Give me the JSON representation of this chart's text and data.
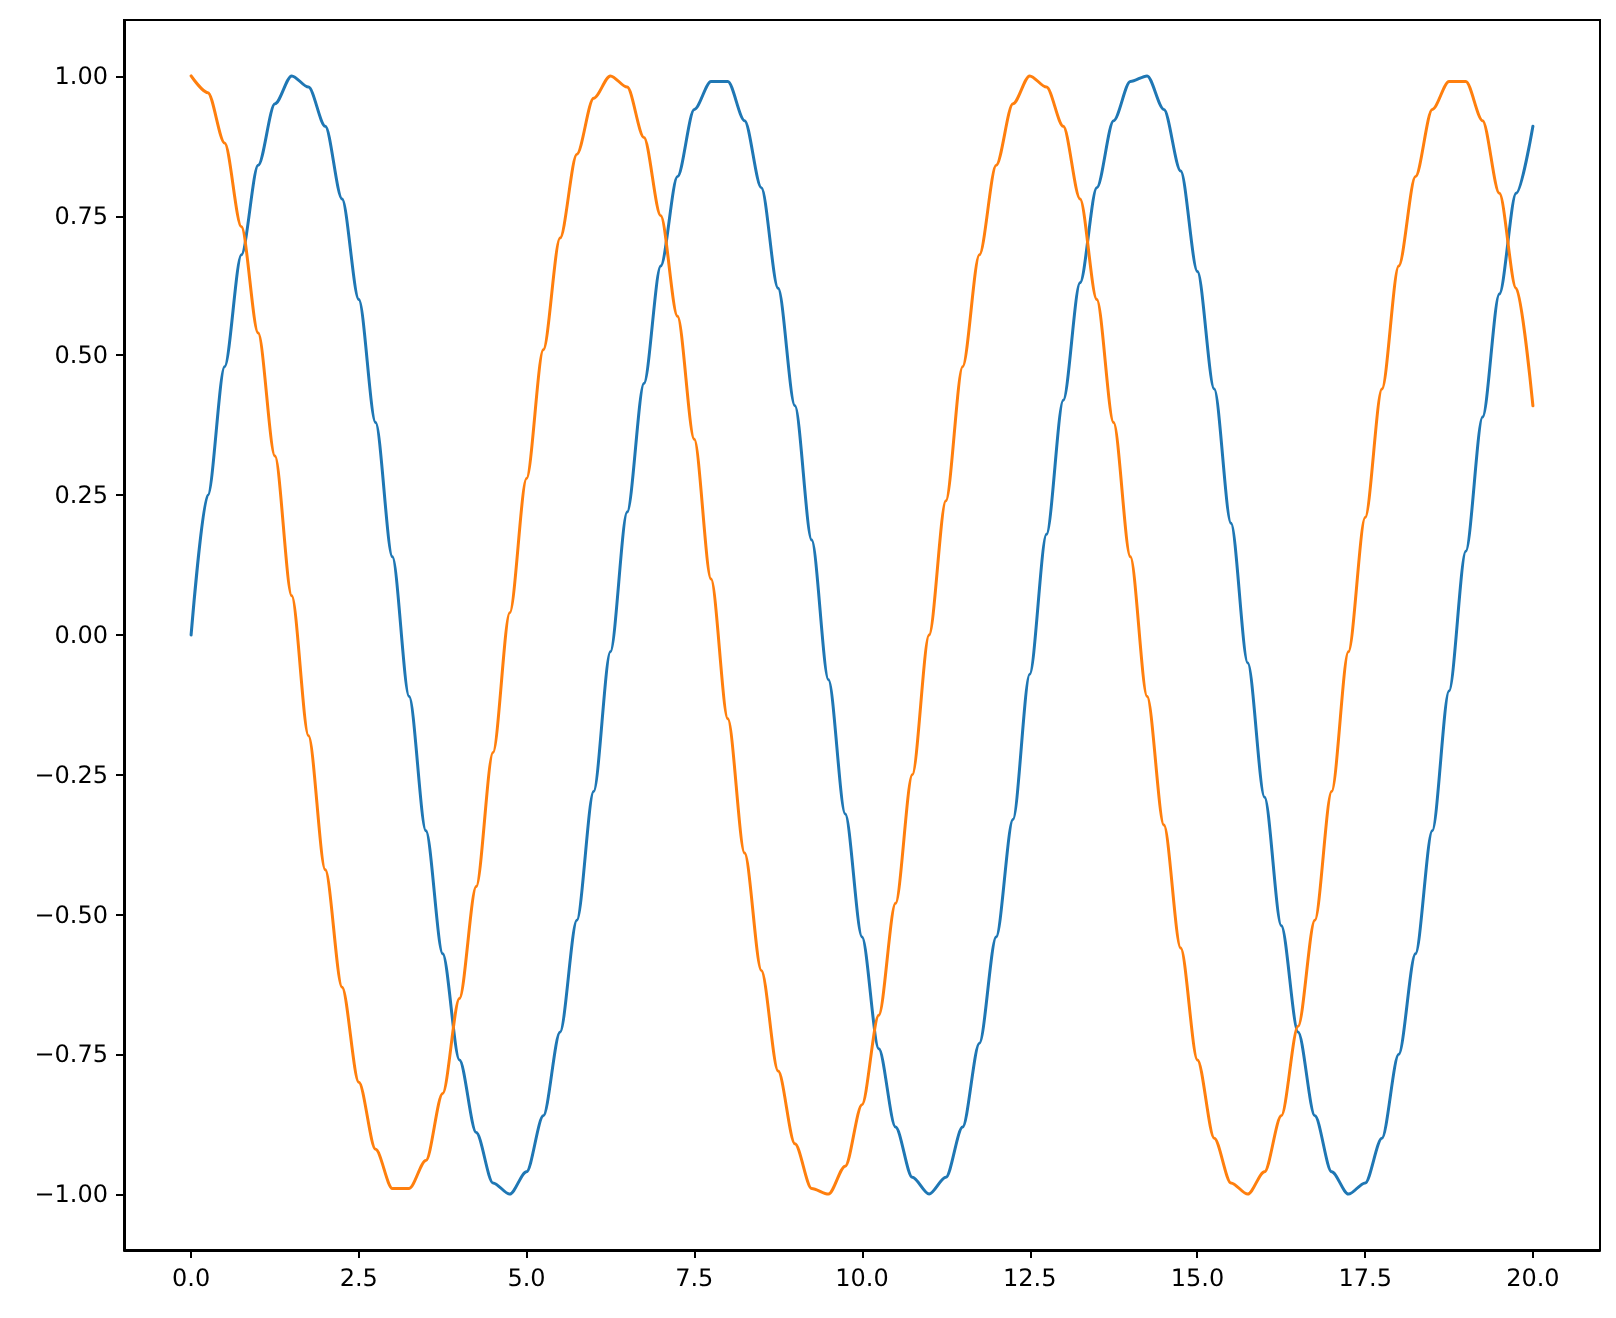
{
  "chart_data": {
    "type": "line",
    "x": [
      0,
      0.25,
      0.5,
      0.75,
      1,
      1.25,
      1.5,
      1.75,
      2,
      2.25,
      2.5,
      2.75,
      3,
      3.25,
      3.5,
      3.75,
      4,
      4.25,
      4.5,
      4.75,
      5,
      5.25,
      5.5,
      5.75,
      6,
      6.25,
      6.5,
      6.75,
      7,
      7.25,
      7.5,
      7.75,
      8,
      8.25,
      8.5,
      8.75,
      9,
      9.25,
      9.5,
      9.75,
      10,
      10.25,
      10.5,
      10.75,
      11,
      11.25,
      11.5,
      11.75,
      12,
      12.25,
      12.5,
      12.75,
      13,
      13.25,
      13.5,
      13.75,
      14,
      14.25,
      14.5,
      14.75,
      15,
      15.25,
      15.5,
      15.75,
      16,
      16.25,
      16.5,
      16.75,
      17,
      17.25,
      17.5,
      17.75,
      18,
      18.25,
      18.5,
      18.75,
      19,
      19.25,
      19.5,
      19.75,
      20
    ],
    "series": [
      {
        "color": "#1f77b4",
        "values": [
          0.0,
          0.25,
          0.48,
          0.68,
          0.84,
          0.95,
          1.0,
          0.98,
          0.91,
          0.78,
          0.6,
          0.38,
          0.14,
          -0.11,
          -0.35,
          -0.57,
          -0.76,
          -0.89,
          -0.98,
          -1.0,
          -0.96,
          -0.86,
          -0.71,
          -0.51,
          -0.28,
          -0.03,
          0.22,
          0.45,
          0.66,
          0.82,
          0.94,
          0.99,
          0.99,
          0.92,
          0.8,
          0.62,
          0.41,
          0.17,
          -0.08,
          -0.32,
          -0.54,
          -0.74,
          -0.88,
          -0.97,
          -1.0,
          -0.97,
          -0.88,
          -0.73,
          -0.54,
          -0.33,
          -0.07,
          0.18,
          0.42,
          0.63,
          0.8,
          0.92,
          0.99,
          1.0,
          0.94,
          0.83,
          0.65,
          0.44,
          0.2,
          -0.05,
          -0.29,
          -0.52,
          -0.71,
          -0.86,
          -0.96,
          -1.0,
          -0.98,
          -0.9,
          -0.75,
          -0.57,
          -0.35,
          -0.1,
          0.15,
          0.39,
          0.61,
          0.79,
          0.91
        ]
      },
      {
        "color": "#ff7f0e",
        "values": [
          1.0,
          0.97,
          0.88,
          0.73,
          0.54,
          0.32,
          0.07,
          -0.18,
          -0.42,
          -0.63,
          -0.8,
          -0.92,
          -0.99,
          -0.99,
          -0.94,
          -0.82,
          -0.65,
          -0.45,
          -0.21,
          0.04,
          0.28,
          0.51,
          0.71,
          0.86,
          0.96,
          1.0,
          0.98,
          0.89,
          0.75,
          0.57,
          0.35,
          0.1,
          -0.15,
          -0.39,
          -0.6,
          -0.78,
          -0.91,
          -0.99,
          -1.0,
          -0.95,
          -0.84,
          -0.68,
          -0.48,
          -0.25,
          0.0,
          0.24,
          0.48,
          0.68,
          0.84,
          0.95,
          1.0,
          0.98,
          0.91,
          0.78,
          0.6,
          0.38,
          0.14,
          -0.11,
          -0.34,
          -0.56,
          -0.76,
          -0.9,
          -0.98,
          -1.0,
          -0.96,
          -0.86,
          -0.7,
          -0.51,
          -0.28,
          -0.03,
          0.21,
          0.44,
          0.66,
          0.82,
          0.94,
          0.99,
          0.99,
          0.92,
          0.79,
          0.62,
          0.41
        ]
      }
    ],
    "xlim": [
      -1,
      21
    ],
    "xticks": [
      {
        "value": 0,
        "label": "0.0"
      },
      {
        "value": 2.5,
        "label": "2.5"
      },
      {
        "value": 5,
        "label": "5.0"
      },
      {
        "value": 7.5,
        "label": "7.5"
      },
      {
        "value": 10,
        "label": "10.0"
      },
      {
        "value": 12.5,
        "label": "12.5"
      },
      {
        "value": 15,
        "label": "15.0"
      },
      {
        "value": 17.5,
        "label": "17.5"
      },
      {
        "value": 20,
        "label": "20.0"
      }
    ],
    "ylim": [
      -1.1,
      1.1
    ],
    "yticks": [
      {
        "value": -1,
        "label": "−1.00"
      },
      {
        "value": -0.75,
        "label": "−0.75"
      },
      {
        "value": -0.5,
        "label": "−0.50"
      },
      {
        "value": -0.25,
        "label": "−0.25"
      },
      {
        "value": 0,
        "label": "0.00"
      },
      {
        "value": 0.25,
        "label": "0.25"
      },
      {
        "value": 0.5,
        "label": "0.50"
      },
      {
        "value": 0.75,
        "label": "0.75"
      },
      {
        "value": 1,
        "label": "1.00"
      }
    ],
    "grid": false,
    "marker": "none",
    "line_style": "solid"
  }
}
